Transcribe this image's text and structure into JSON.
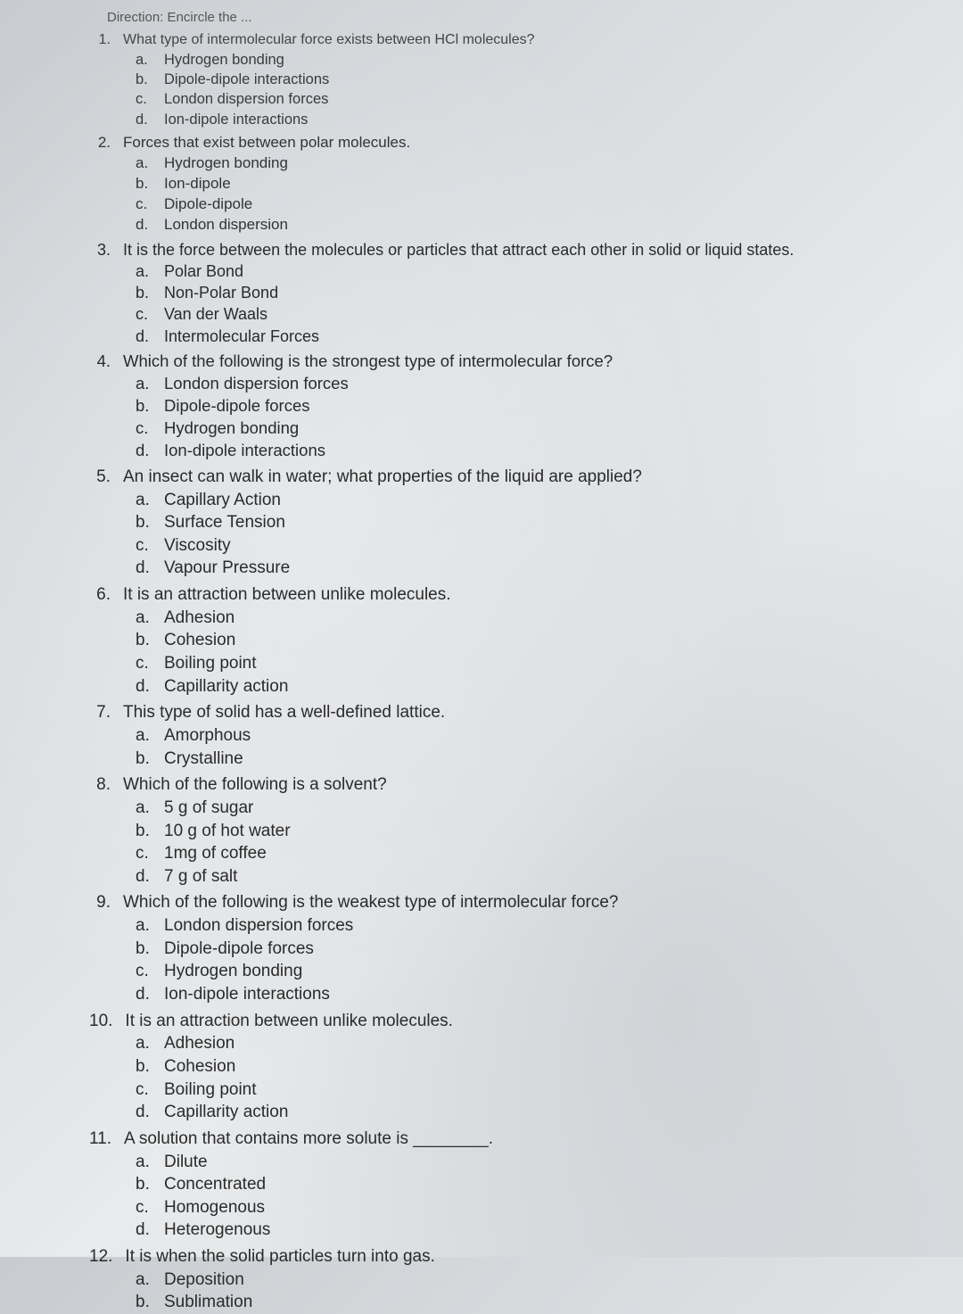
{
  "direction_label": "Direction: Encircle the ...",
  "questions": [
    {
      "num": "1.",
      "text": "What type of intermolecular force exists between HCl molecules?",
      "options": [
        {
          "letter": "a.",
          "text": "Hydrogen bonding"
        },
        {
          "letter": "b.",
          "text": "Dipole-dipole interactions"
        },
        {
          "letter": "c.",
          "text": "London dispersion forces"
        },
        {
          "letter": "d.",
          "text": "Ion-dipole interactions"
        }
      ]
    },
    {
      "num": "2.",
      "text": "Forces that exist between polar molecules.",
      "options": [
        {
          "letter": "a.",
          "text": "Hydrogen bonding"
        },
        {
          "letter": "b.",
          "text": "Ion-dipole"
        },
        {
          "letter": "c.",
          "text": "Dipole-dipole"
        },
        {
          "letter": "d.",
          "text": "London dispersion"
        }
      ]
    },
    {
      "num": "3.",
      "text": "It is the force between the molecules or particles that attract each other in solid or liquid states.",
      "options": [
        {
          "letter": "a.",
          "text": "Polar Bond"
        },
        {
          "letter": "b.",
          "text": "Non-Polar Bond"
        },
        {
          "letter": "c.",
          "text": "Van der Waals"
        },
        {
          "letter": "d.",
          "text": "Intermolecular Forces"
        }
      ]
    },
    {
      "num": "4.",
      "text": "Which of the following is the strongest type of intermolecular force?",
      "options": [
        {
          "letter": "a.",
          "text": "London dispersion forces"
        },
        {
          "letter": "b.",
          "text": "Dipole-dipole forces"
        },
        {
          "letter": "c.",
          "text": "Hydrogen bonding"
        },
        {
          "letter": "d.",
          "text": "Ion-dipole interactions"
        }
      ]
    },
    {
      "num": "5.",
      "text": "An insect can walk in water; what properties of the liquid are applied?",
      "options": [
        {
          "letter": "a.",
          "text": "Capillary Action"
        },
        {
          "letter": "b.",
          "text": "Surface Tension"
        },
        {
          "letter": "c.",
          "text": "Viscosity"
        },
        {
          "letter": "d.",
          "text": "Vapour Pressure"
        }
      ]
    },
    {
      "num": "6.",
      "text": "It is an attraction between unlike molecules.",
      "options": [
        {
          "letter": "a.",
          "text": "Adhesion"
        },
        {
          "letter": "b.",
          "text": "Cohesion"
        },
        {
          "letter": "c.",
          "text": "Boiling point"
        },
        {
          "letter": "d.",
          "text": "Capillarity action"
        }
      ]
    },
    {
      "num": "7.",
      "text": "This type of solid has a well-defined lattice.",
      "options": [
        {
          "letter": "a.",
          "text": "Amorphous"
        },
        {
          "letter": "b.",
          "text": "Crystalline"
        }
      ]
    },
    {
      "num": "8.",
      "text": "Which of the following is a solvent?",
      "options": [
        {
          "letter": "a.",
          "text": "5 g of sugar"
        },
        {
          "letter": "b.",
          "text": "10 g of hot water"
        },
        {
          "letter": "c.",
          "text": "1mg of coffee"
        },
        {
          "letter": "d.",
          "text": "7 g of salt"
        }
      ]
    },
    {
      "num": "9.",
      "text": "Which of the following is the weakest type of intermolecular force?",
      "options": [
        {
          "letter": "a.",
          "text": "London dispersion forces"
        },
        {
          "letter": "b.",
          "text": "Dipole-dipole forces"
        },
        {
          "letter": "c.",
          "text": "Hydrogen bonding"
        },
        {
          "letter": "d.",
          "text": "Ion-dipole interactions"
        }
      ]
    },
    {
      "num": "10.",
      "text": "It is an attraction between unlike molecules.",
      "options": [
        {
          "letter": "a.",
          "text": "Adhesion"
        },
        {
          "letter": "b.",
          "text": "Cohesion"
        },
        {
          "letter": "c.",
          "text": "Boiling point"
        },
        {
          "letter": "d.",
          "text": "Capillarity action"
        }
      ]
    },
    {
      "num": "11.",
      "text": "A solution that contains more solute is ________.",
      "options": [
        {
          "letter": "a.",
          "text": "Dilute"
        },
        {
          "letter": "b.",
          "text": "Concentrated"
        },
        {
          "letter": "c.",
          "text": "Homogenous"
        },
        {
          "letter": "d.",
          "text": "Heterogenous"
        }
      ]
    },
    {
      "num": "12.",
      "text": "It is when the solid particles turn into gas.",
      "options": [
        {
          "letter": "a.",
          "text": "Deposition"
        },
        {
          "letter": "b.",
          "text": "Sublimation"
        }
      ]
    }
  ]
}
